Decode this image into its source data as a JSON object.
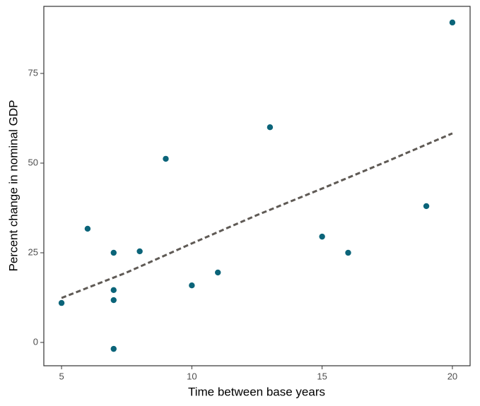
{
  "chart_data": {
    "type": "scatter",
    "xlabel": "Time between base years",
    "ylabel": "Percent change in nominal GDP",
    "x": [
      5,
      6,
      7,
      7,
      7,
      7,
      8,
      9,
      10,
      11,
      13,
      15,
      16,
      19,
      20
    ],
    "values": [
      11,
      31.7,
      25,
      14.6,
      11.8,
      -1.8,
      25.4,
      51.2,
      15.9,
      19.5,
      60,
      29.5,
      25,
      38,
      89.2
    ],
    "color": "#0b6479",
    "trend": {
      "x": [
        5,
        7.5,
        10,
        12.5,
        15,
        17.5,
        20
      ],
      "values": [
        12.4,
        19.5,
        27.6,
        35.5,
        42.9,
        50.5,
        58.3
      ],
      "color": "#5f5a55",
      "style": "dashed"
    },
    "xlim": [
      4.32,
      20.68
    ],
    "ylim": [
      -6.5,
      93.7
    ],
    "xticks": [
      5,
      10,
      15,
      20
    ],
    "yticks": [
      0,
      25,
      50,
      75
    ]
  }
}
